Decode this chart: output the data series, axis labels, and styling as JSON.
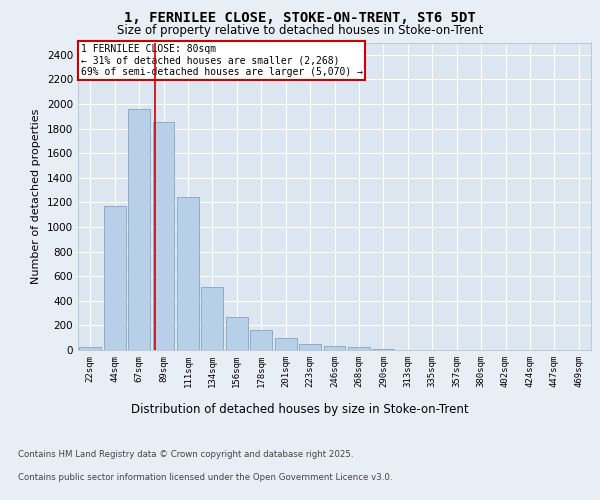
{
  "title1": "1, FERNILEE CLOSE, STOKE-ON-TRENT, ST6 5DT",
  "title2": "Size of property relative to detached houses in Stoke-on-Trent",
  "xlabel": "Distribution of detached houses by size in Stoke-on-Trent",
  "ylabel": "Number of detached properties",
  "categories": [
    "22sqm",
    "44sqm",
    "67sqm",
    "89sqm",
    "111sqm",
    "134sqm",
    "156sqm",
    "178sqm",
    "201sqm",
    "223sqm",
    "246sqm",
    "268sqm",
    "290sqm",
    "313sqm",
    "335sqm",
    "357sqm",
    "380sqm",
    "402sqm",
    "424sqm",
    "447sqm",
    "469sqm"
  ],
  "values": [
    25,
    1170,
    1960,
    1850,
    1245,
    515,
    270,
    160,
    95,
    45,
    35,
    25,
    5,
    2,
    1,
    1,
    0,
    0,
    0,
    0,
    0
  ],
  "bar_color": "#b8cfe8",
  "bar_edge_color": "#7799bb",
  "annotation_title": "1 FERNILEE CLOSE: 80sqm",
  "annotation_line1": "← 31% of detached houses are smaller (2,268)",
  "annotation_line2": "69% of semi-detached houses are larger (5,070) →",
  "annotation_box_color": "#cc0000",
  "vline_x": 2.67,
  "vline_color": "#cc0000",
  "ylim": [
    0,
    2500
  ],
  "yticks": [
    0,
    200,
    400,
    600,
    800,
    1000,
    1200,
    1400,
    1600,
    1800,
    2000,
    2200,
    2400
  ],
  "bg_color": "#e8eef5",
  "plot_bg_color": "#dce6f0",
  "footer1": "Contains HM Land Registry data © Crown copyright and database right 2025.",
  "footer2": "Contains public sector information licensed under the Open Government Licence v3.0."
}
